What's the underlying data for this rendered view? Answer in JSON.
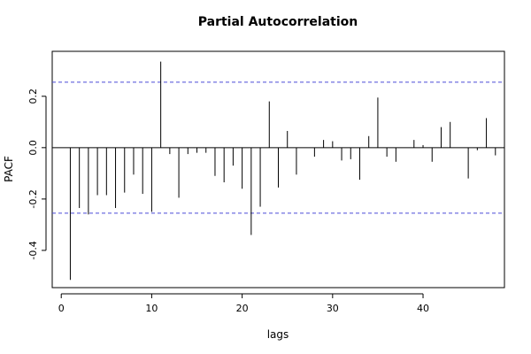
{
  "chart_data": {
    "type": "bar",
    "title": "Partial Autocorrelation",
    "xlabel": "lags",
    "ylabel": "PACF",
    "xlim": [
      -1,
      49
    ],
    "ylim": [
      -0.545,
      0.375
    ],
    "x_ticks": [
      0,
      10,
      20,
      30,
      40
    ],
    "y_ticks": [
      -0.4,
      -0.2,
      0.0,
      0.2
    ],
    "x_tick_labels": [
      "0",
      "10",
      "20",
      "30",
      "40"
    ],
    "y_tick_labels": [
      "-0.4",
      "-0.2",
      "0.0",
      "0.2"
    ],
    "confidence_bound": 0.255,
    "bound_color": "#4b4bd6",
    "bar_color": "#000000",
    "lags": [
      1,
      2,
      3,
      4,
      5,
      6,
      7,
      8,
      9,
      10,
      11,
      12,
      13,
      14,
      15,
      16,
      17,
      18,
      19,
      20,
      21,
      22,
      23,
      24,
      25,
      26,
      27,
      28,
      29,
      30,
      31,
      32,
      33,
      34,
      35,
      36,
      37,
      38,
      39,
      40,
      41,
      42,
      43,
      44,
      45,
      46,
      47,
      48
    ],
    "values": [
      -0.515,
      -0.235,
      -0.26,
      -0.185,
      -0.185,
      -0.235,
      -0.175,
      -0.105,
      -0.18,
      -0.25,
      0.335,
      -0.025,
      -0.195,
      -0.025,
      -0.02,
      -0.02,
      -0.11,
      -0.135,
      -0.07,
      -0.16,
      -0.34,
      -0.23,
      0.18,
      -0.155,
      0.065,
      -0.105,
      0.0,
      -0.035,
      0.03,
      0.025,
      -0.05,
      -0.045,
      -0.125,
      0.045,
      0.195,
      -0.035,
      -0.055,
      0.0,
      0.03,
      0.01,
      -0.055,
      0.08,
      0.1,
      0.0,
      -0.12,
      -0.01,
      0.115,
      -0.03
    ]
  }
}
